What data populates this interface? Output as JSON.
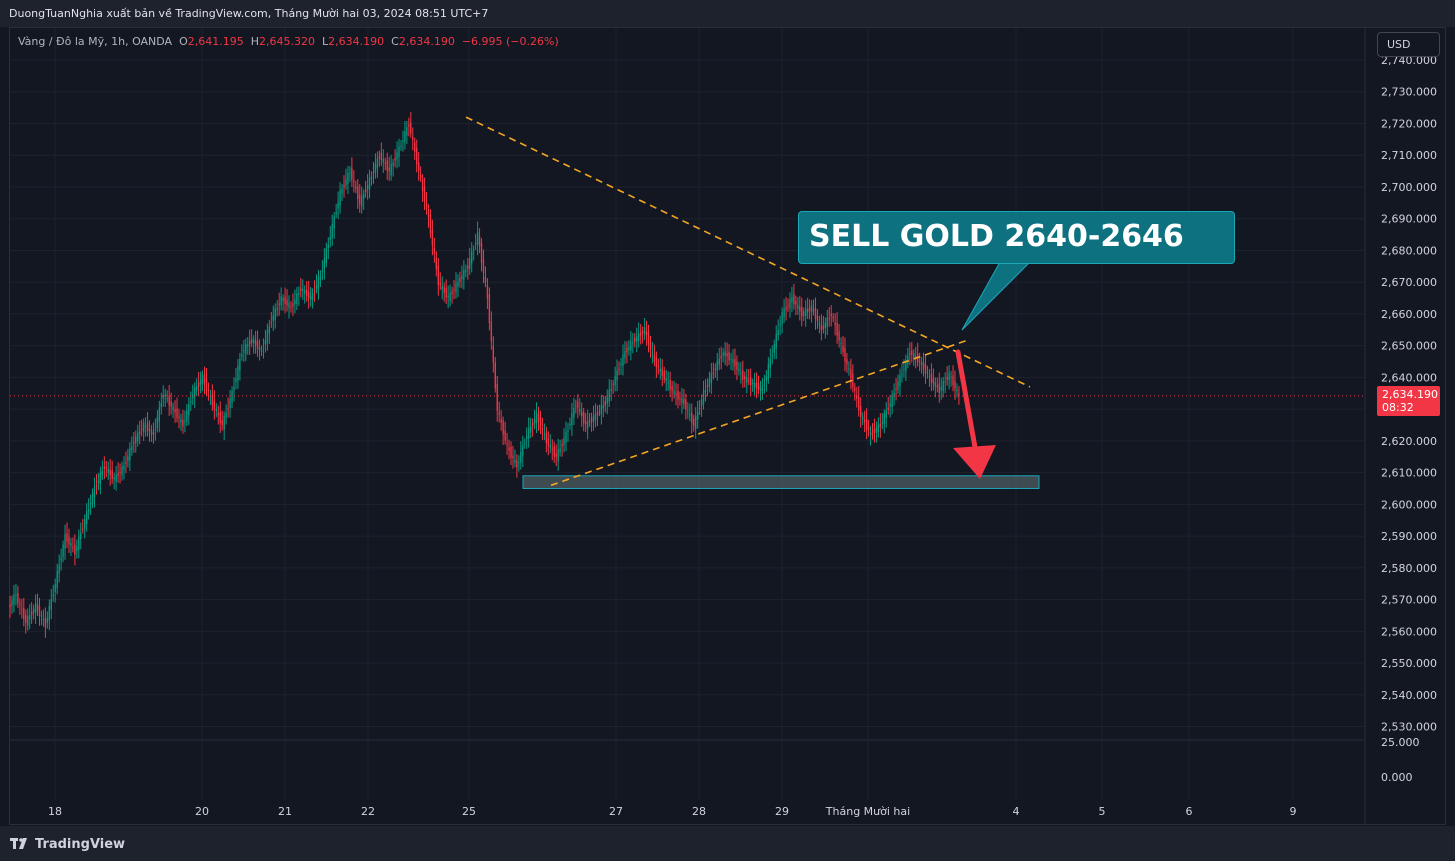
{
  "header": {
    "published_text": "DuongTuanNghia xuất bản về TradingView.com, Tháng Mười hai 03, 2024 08:51 UTC+7"
  },
  "legend": {
    "symbol": "Vàng / Đô la Mỹ, 1h, OANDA",
    "o_label": "O",
    "o_value": "2,641.195",
    "h_label": "H",
    "h_value": "2,645.320",
    "l_label": "L",
    "l_value": "2,634.190",
    "c_label": "C",
    "c_value": "2,634.190",
    "change": "−6.995 (−0.26%)"
  },
  "currency_button": "USD",
  "current_price": {
    "price": "2,634.190",
    "countdown": "08:32"
  },
  "annotation": {
    "text": "SELL GOLD 2640-2646"
  },
  "footer": {
    "brand": "TradingView"
  },
  "colors": {
    "background": "#131722",
    "up": "#089981",
    "down": "#f23645",
    "trendline": "#f5a623",
    "callout": "#0e7180",
    "zone": "#4a5a5e"
  },
  "chart_data": {
    "type": "candlestick",
    "y_ticks": [
      "2,740.000",
      "2,730.000",
      "2,720.000",
      "2,710.000",
      "2,700.000",
      "2,690.000",
      "2,680.000",
      "2,670.000",
      "2,660.000",
      "2,650.000",
      "2,640.000",
      "2,630.000",
      "2,620.000",
      "2,610.000",
      "2,600.000",
      "2,590.000",
      "2,580.000",
      "2,570.000",
      "2,560.000",
      "2,550.000",
      "2,540.000",
      "2,530.000"
    ],
    "y_range": [
      2525,
      2743
    ],
    "sub_y_ticks": [
      "25.000",
      "0.000"
    ],
    "x_ticks": [
      "18",
      "20",
      "21",
      "22",
      "25",
      "27",
      "28",
      "29",
      "Tháng Mười hai",
      "4",
      "5",
      "6",
      "9"
    ],
    "price_path": [
      [
        2566,
        2572
      ],
      [
        2571,
        2563
      ],
      [
        2563,
        2568
      ],
      [
        2568,
        2562
      ],
      [
        2562,
        2575
      ],
      [
        2575,
        2590
      ],
      [
        2590,
        2585
      ],
      [
        2585,
        2595
      ],
      [
        2595,
        2605
      ],
      [
        2605,
        2612
      ],
      [
        2612,
        2608
      ],
      [
        2608,
        2612
      ],
      [
        2612,
        2620
      ],
      [
        2620,
        2625
      ],
      [
        2625,
        2622
      ],
      [
        2622,
        2635
      ],
      [
        2635,
        2630
      ],
      [
        2630,
        2625
      ],
      [
        2625,
        2635
      ],
      [
        2635,
        2640
      ],
      [
        2640,
        2632
      ],
      [
        2632,
        2625
      ],
      [
        2625,
        2635
      ],
      [
        2635,
        2648
      ],
      [
        2648,
        2652
      ],
      [
        2652,
        2648
      ],
      [
        2648,
        2658
      ],
      [
        2658,
        2665
      ],
      [
        2665,
        2662
      ],
      [
        2662,
        2668
      ],
      [
        2668,
        2665
      ],
      [
        2665,
        2672
      ],
      [
        2672,
        2685
      ],
      [
        2685,
        2698
      ],
      [
        2698,
        2705
      ],
      [
        2705,
        2695
      ],
      [
        2695,
        2702
      ],
      [
        2702,
        2710
      ],
      [
        2710,
        2705
      ],
      [
        2705,
        2712
      ],
      [
        2712,
        2720
      ],
      [
        2720,
        2705
      ],
      [
        2705,
        2690
      ],
      [
        2690,
        2670
      ],
      [
        2670,
        2665
      ],
      [
        2665,
        2670
      ],
      [
        2670,
        2675
      ],
      [
        2675,
        2685
      ],
      [
        2685,
        2665
      ],
      [
        2665,
        2630
      ],
      [
        2630,
        2618
      ],
      [
        2618,
        2612
      ],
      [
        2612,
        2622
      ],
      [
        2622,
        2628
      ],
      [
        2628,
        2620
      ],
      [
        2620,
        2615
      ],
      [
        2615,
        2622
      ],
      [
        2622,
        2632
      ],
      [
        2632,
        2625
      ],
      [
        2625,
        2628
      ],
      [
        2628,
        2632
      ],
      [
        2632,
        2640
      ],
      [
        2640,
        2648
      ],
      [
        2648,
        2652
      ],
      [
        2652,
        2655
      ],
      [
        2655,
        2645
      ],
      [
        2645,
        2640
      ],
      [
        2640,
        2635
      ],
      [
        2635,
        2632
      ],
      [
        2632,
        2625
      ],
      [
        2625,
        2635
      ],
      [
        2635,
        2642
      ],
      [
        2642,
        2648
      ],
      [
        2648,
        2645
      ],
      [
        2645,
        2640
      ],
      [
        2640,
        2638
      ],
      [
        2638,
        2636
      ],
      [
        2636,
        2648
      ],
      [
        2648,
        2660
      ],
      [
        2660,
        2665
      ],
      [
        2665,
        2660
      ],
      [
        2660,
        2662
      ],
      [
        2662,
        2655
      ],
      [
        2655,
        2660
      ],
      [
        2660,
        2650
      ],
      [
        2650,
        2640
      ],
      [
        2640,
        2628
      ],
      [
        2628,
        2622
      ],
      [
        2622,
        2625
      ],
      [
        2625,
        2632
      ],
      [
        2632,
        2640
      ],
      [
        2640,
        2648
      ],
      [
        2648,
        2645
      ],
      [
        2645,
        2640
      ],
      [
        2640,
        2636
      ],
      [
        2636,
        2641
      ],
      [
        2641,
        2634
      ]
    ],
    "trendlines": [
      {
        "style": "dashed",
        "from": [
          "25 early",
          2722
        ],
        "to": [
          "Dec 4",
          2637
        ]
      },
      {
        "style": "dashed",
        "from": [
          "26",
          2606
        ],
        "to": [
          "Dec 3",
          2652
        ]
      }
    ],
    "zone": {
      "low": 2605,
      "high": 2609
    },
    "arrow": {
      "from": 2648,
      "to": 2608,
      "direction": "down"
    }
  }
}
